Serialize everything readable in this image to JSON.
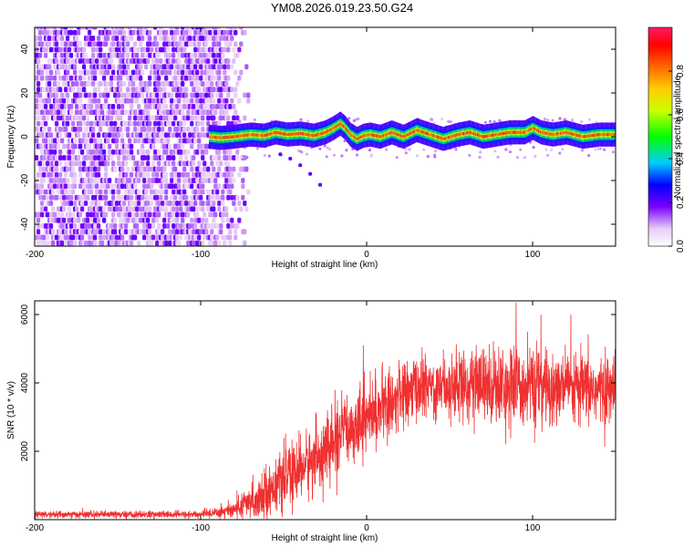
{
  "title": "YM08.2026.019.23.50.G24",
  "chart_data": [
    {
      "type": "heatmap",
      "name": "spectrogram",
      "xlabel": "Height of straight line (km)",
      "ylabel": "Frequency (Hz)",
      "xlim": [
        -200,
        150
      ],
      "ylim": [
        -50,
        50
      ],
      "xticks": [
        -200,
        -100,
        0,
        100
      ],
      "yticks": [
        -40,
        -20,
        0,
        20,
        40
      ],
      "colorbar": {
        "label": "Normalized spectral amplitude",
        "range": [
          0,
          1
        ],
        "ticks": [
          0.0,
          0.2,
          0.4,
          0.6,
          0.8
        ],
        "tick_labels": [
          "0.0",
          "0.2",
          "0.4",
          "0.6",
          "0.8"
        ]
      },
      "noise_region_x": [
        -200,
        -78
      ],
      "ridge": {
        "x": [
          -95,
          -88,
          -80,
          -70,
          -62,
          -55,
          -48,
          -40,
          -32,
          -25,
          -20,
          -16,
          -13,
          -10,
          -6,
          -2,
          2,
          8,
          15,
          22,
          30,
          38,
          46,
          55,
          62,
          70,
          78,
          86,
          95,
          100,
          105,
          112,
          120,
          130,
          140,
          150
        ],
        "y": [
          0,
          -0.5,
          0,
          1,
          0.5,
          2,
          1,
          1.5,
          0.5,
          2,
          4,
          6,
          4,
          1,
          -1,
          0.5,
          1,
          0,
          2,
          0,
          3,
          1,
          -1,
          1,
          2,
          0,
          1,
          2,
          2,
          4,
          2,
          1,
          2,
          0,
          1,
          1
        ],
        "peak_amplitude": 0.9
      },
      "secondary_trace": {
        "x": [
          -52,
          -46,
          -40,
          -34,
          -28
        ],
        "y": [
          -8,
          -10,
          -13,
          -17,
          -22
        ]
      }
    },
    {
      "type": "line",
      "name": "snr",
      "xlabel": "Height of straight line (km)",
      "ylabel": "SNR (10 * v/v)",
      "xlim": [
        -200,
        150
      ],
      "ylim": [
        0,
        6400
      ],
      "xticks": [
        -200,
        -100,
        0,
        100
      ],
      "yticks": [
        2000,
        4000,
        6000
      ],
      "color": "#f03030",
      "envelope": {
        "x": [
          -200,
          -100,
          -80,
          -70,
          -55,
          -40,
          -25,
          -10,
          0,
          10,
          20,
          30,
          50,
          70,
          90,
          110,
          130,
          150
        ],
        "y": [
          150,
          150,
          300,
          500,
          1000,
          1500,
          2000,
          2700,
          3000,
          3300,
          3600,
          3850,
          3950,
          3950,
          3900,
          3850,
          3800,
          3800
        ]
      },
      "noise_std": [
        [
          -200,
          60
        ],
        [
          -100,
          60
        ],
        [
          -80,
          150
        ],
        [
          -60,
          400
        ],
        [
          -20,
          600
        ],
        [
          0,
          550
        ],
        [
          40,
          500
        ],
        [
          80,
          650
        ],
        [
          150,
          550
        ]
      ],
      "notable_peaks": [
        [
          -2,
          5100
        ],
        [
          90,
          6350
        ],
        [
          105,
          6000
        ],
        [
          123,
          6000
        ],
        [
          97,
          5500
        ]
      ]
    }
  ]
}
